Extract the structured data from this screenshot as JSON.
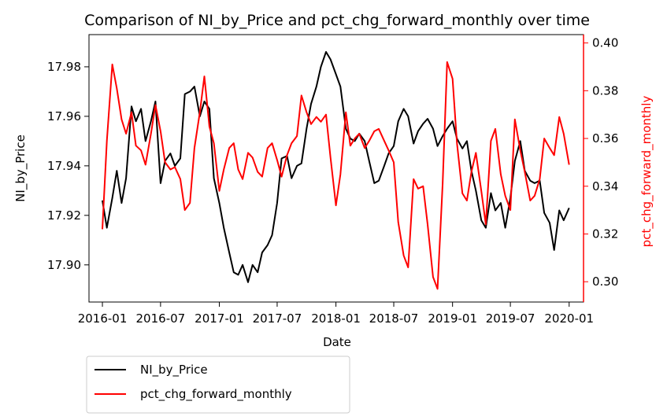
{
  "chart_data": {
    "type": "line",
    "title": "Comparison of NI_by_Price and pct_chg_forward_monthly over time",
    "xlabel": "Date",
    "ylabel_left": "NI_by_Price",
    "ylabel_right": "pct_chg_forward_monthly",
    "x_ticks": [
      "2016-01",
      "2016-07",
      "2017-01",
      "2017-07",
      "2018-01",
      "2018-07",
      "2019-01",
      "2019-07",
      "2020-01"
    ],
    "xlim": [
      "2015-11-20",
      "2020-02-15"
    ],
    "left_axis": {
      "ylim": [
        17.885,
        17.993
      ],
      "ticks": [
        "17.90",
        "17.92",
        "17.94",
        "17.96",
        "17.98"
      ]
    },
    "right_axis": {
      "ylim": [
        0.2915,
        0.4035
      ],
      "ticks": [
        "0.30",
        "0.32",
        "0.34",
        "0.36",
        "0.38",
        "0.40"
      ],
      "color": "#ff0000"
    },
    "legend_placement": "below-left",
    "series": [
      {
        "name": "NI_by_Price",
        "axis": "left",
        "color": "#000000",
        "x": [
          "2016-01-01",
          "2016-01-15",
          "2016-02-01",
          "2016-02-15",
          "2016-03-01",
          "2016-03-15",
          "2016-04-01",
          "2016-04-15",
          "2016-05-01",
          "2016-05-15",
          "2016-06-01",
          "2016-06-15",
          "2016-07-01",
          "2016-07-15",
          "2016-08-01",
          "2016-08-15",
          "2016-09-01",
          "2016-09-15",
          "2016-10-01",
          "2016-10-15",
          "2016-11-01",
          "2016-11-15",
          "2016-12-01",
          "2016-12-15",
          "2017-01-01",
          "2017-01-15",
          "2017-02-01",
          "2017-02-15",
          "2017-03-01",
          "2017-03-15",
          "2017-04-01",
          "2017-04-15",
          "2017-05-01",
          "2017-05-15",
          "2017-06-01",
          "2017-06-15",
          "2017-07-01",
          "2017-07-15",
          "2017-08-01",
          "2017-08-15",
          "2017-09-01",
          "2017-09-15",
          "2017-10-01",
          "2017-10-15",
          "2017-11-01",
          "2017-11-15",
          "2017-12-01",
          "2017-12-15",
          "2018-01-01",
          "2018-01-15",
          "2018-02-01",
          "2018-02-15",
          "2018-03-01",
          "2018-03-15",
          "2018-04-01",
          "2018-04-15",
          "2018-05-01",
          "2018-05-15",
          "2018-06-01",
          "2018-06-15",
          "2018-07-01",
          "2018-07-15",
          "2018-08-01",
          "2018-08-15",
          "2018-09-01",
          "2018-09-15",
          "2018-10-01",
          "2018-10-15",
          "2018-11-01",
          "2018-11-15",
          "2018-12-01",
          "2018-12-15",
          "2019-01-01",
          "2019-01-15",
          "2019-02-01",
          "2019-02-15",
          "2019-03-01",
          "2019-03-15",
          "2019-04-01",
          "2019-04-15",
          "2019-05-01",
          "2019-05-15",
          "2019-06-01",
          "2019-06-15",
          "2019-07-01",
          "2019-07-15",
          "2019-08-01",
          "2019-08-15",
          "2019-09-01",
          "2019-09-15",
          "2019-10-01",
          "2019-10-15",
          "2019-11-01",
          "2019-11-15",
          "2019-12-01",
          "2019-12-15",
          "2020-01-01"
        ],
        "y": [
          17.926,
          17.915,
          17.927,
          17.938,
          17.925,
          17.935,
          17.964,
          17.958,
          17.963,
          17.95,
          17.958,
          17.966,
          17.933,
          17.942,
          17.945,
          17.94,
          17.943,
          17.969,
          17.97,
          17.972,
          17.96,
          17.966,
          17.963,
          17.935,
          17.925,
          17.915,
          17.905,
          17.897,
          17.896,
          17.9,
          17.893,
          17.9,
          17.897,
          17.905,
          17.908,
          17.912,
          17.925,
          17.943,
          17.944,
          17.935,
          17.94,
          17.941,
          17.955,
          17.965,
          17.972,
          17.98,
          17.986,
          17.983,
          17.977,
          17.972,
          17.955,
          17.951,
          17.95,
          17.953,
          17.95,
          17.942,
          17.933,
          17.934,
          17.94,
          17.945,
          17.948,
          17.958,
          17.963,
          17.96,
          17.949,
          17.954,
          17.957,
          17.959,
          17.955,
          17.948,
          17.952,
          17.955,
          17.958,
          17.951,
          17.947,
          17.95,
          17.938,
          17.93,
          17.918,
          17.915,
          17.929,
          17.922,
          17.925,
          17.915,
          17.927,
          17.942,
          17.95,
          17.938,
          17.934,
          17.933,
          17.934,
          17.921,
          17.917,
          17.906,
          17.922,
          17.918,
          17.923
        ]
      },
      {
        "name": "pct_chg_forward_monthly",
        "axis": "right",
        "color": "#ff0000",
        "x": [
          "2016-01-01",
          "2016-01-15",
          "2016-02-01",
          "2016-02-15",
          "2016-03-01",
          "2016-03-15",
          "2016-04-01",
          "2016-04-15",
          "2016-05-01",
          "2016-05-15",
          "2016-06-01",
          "2016-06-15",
          "2016-07-01",
          "2016-07-15",
          "2016-08-01",
          "2016-08-15",
          "2016-09-01",
          "2016-09-15",
          "2016-10-01",
          "2016-10-15",
          "2016-11-01",
          "2016-11-15",
          "2016-12-01",
          "2016-12-15",
          "2017-01-01",
          "2017-01-15",
          "2017-02-01",
          "2017-02-15",
          "2017-03-01",
          "2017-03-15",
          "2017-04-01",
          "2017-04-15",
          "2017-05-01",
          "2017-05-15",
          "2017-06-01",
          "2017-06-15",
          "2017-07-01",
          "2017-07-15",
          "2017-08-01",
          "2017-08-15",
          "2017-09-01",
          "2017-09-15",
          "2017-10-01",
          "2017-10-15",
          "2017-11-01",
          "2017-11-15",
          "2017-12-01",
          "2017-12-15",
          "2018-01-01",
          "2018-01-15",
          "2018-02-01",
          "2018-02-15",
          "2018-03-01",
          "2018-03-15",
          "2018-04-01",
          "2018-04-15",
          "2018-05-01",
          "2018-05-15",
          "2018-06-01",
          "2018-06-15",
          "2018-07-01",
          "2018-07-15",
          "2018-08-01",
          "2018-08-15",
          "2018-09-01",
          "2018-09-15",
          "2018-10-01",
          "2018-10-15",
          "2018-11-01",
          "2018-11-15",
          "2018-12-01",
          "2018-12-15",
          "2019-01-01",
          "2019-01-15",
          "2019-02-01",
          "2019-02-15",
          "2019-03-01",
          "2019-03-15",
          "2019-04-01",
          "2019-04-15",
          "2019-05-01",
          "2019-05-15",
          "2019-06-01",
          "2019-06-15",
          "2019-07-01",
          "2019-07-15",
          "2019-08-01",
          "2019-08-15",
          "2019-09-01",
          "2019-09-15",
          "2019-10-01",
          "2019-10-15",
          "2019-11-01",
          "2019-11-15",
          "2019-12-01",
          "2019-12-15",
          "2020-01-01"
        ],
        "y": [
          0.322,
          0.359,
          0.391,
          0.381,
          0.368,
          0.362,
          0.371,
          0.357,
          0.355,
          0.349,
          0.362,
          0.374,
          0.363,
          0.35,
          0.347,
          0.348,
          0.343,
          0.33,
          0.333,
          0.356,
          0.371,
          0.386,
          0.365,
          0.358,
          0.338,
          0.347,
          0.356,
          0.358,
          0.347,
          0.343,
          0.354,
          0.352,
          0.346,
          0.344,
          0.356,
          0.358,
          0.351,
          0.344,
          0.353,
          0.358,
          0.361,
          0.378,
          0.371,
          0.366,
          0.369,
          0.367,
          0.37,
          0.352,
          0.332,
          0.345,
          0.371,
          0.357,
          0.36,
          0.362,
          0.356,
          0.359,
          0.363,
          0.364,
          0.359,
          0.355,
          0.35,
          0.325,
          0.311,
          0.306,
          0.343,
          0.339,
          0.34,
          0.324,
          0.302,
          0.297,
          0.341,
          0.392,
          0.385,
          0.358,
          0.337,
          0.334,
          0.346,
          0.354,
          0.338,
          0.324,
          0.359,
          0.364,
          0.345,
          0.336,
          0.33,
          0.368,
          0.355,
          0.346,
          0.334,
          0.336,
          0.343,
          0.36,
          0.356,
          0.353,
          0.369,
          0.362,
          0.349
        ]
      }
    ]
  }
}
